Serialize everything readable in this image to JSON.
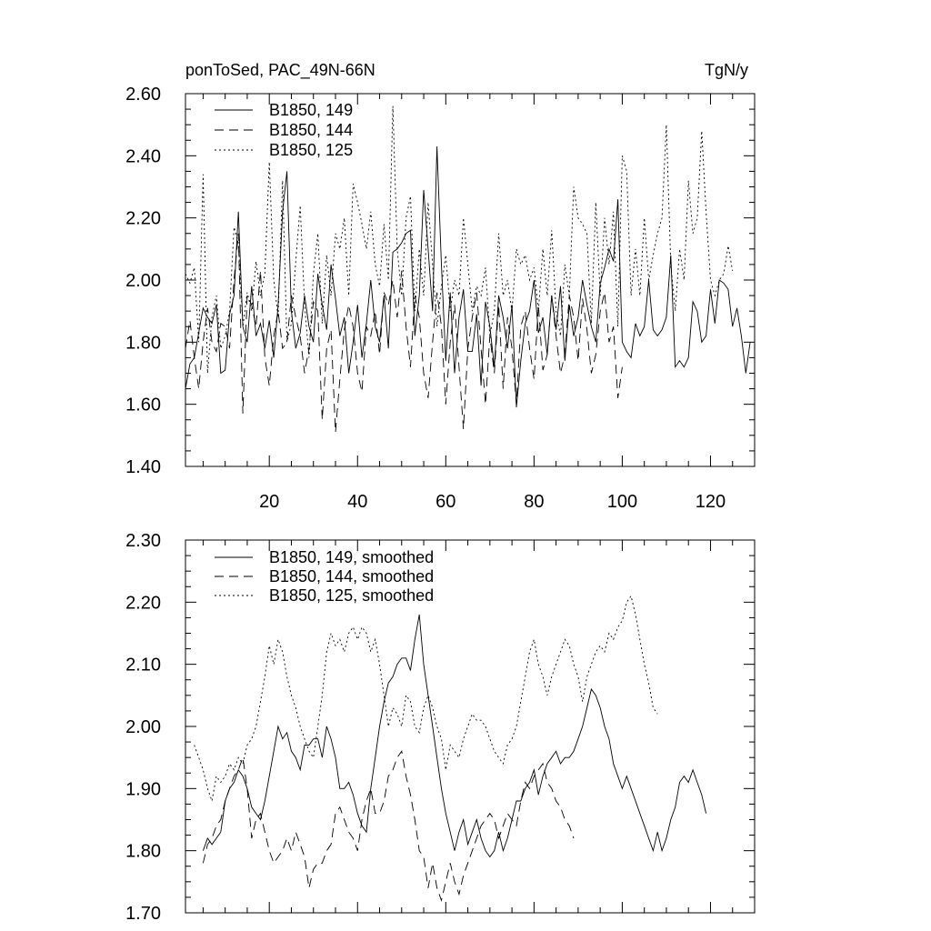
{
  "chart_data": [
    {
      "type": "line",
      "title_left": "ponToSed, PAC_49N-66N",
      "title_right": "TgN/y",
      "xlim": [
        1,
        130
      ],
      "ylim": [
        1.4,
        2.6
      ],
      "x_ticks": [
        20,
        40,
        60,
        80,
        100,
        120
      ],
      "x_tick_labels": [
        "20",
        "40",
        "60",
        "80",
        "100",
        "120"
      ],
      "y_ticks": [
        1.4,
        1.6,
        1.8,
        2.0,
        2.2,
        2.4,
        2.6
      ],
      "y_tick_labels": [
        "1.40",
        "1.60",
        "1.80",
        "2.00",
        "2.20",
        "2.40",
        "2.60"
      ],
      "legend_position": "top-left",
      "grid": false,
      "series": [
        {
          "name": "B1850, 149",
          "style": "solid",
          "x_start": 1,
          "values": [
            1.65,
            1.73,
            1.75,
            1.83,
            1.91,
            1.88,
            1.86,
            1.92,
            1.7,
            1.71,
            1.89,
            1.95,
            2.22,
            1.85,
            1.8,
            1.98,
            1.82,
            1.86,
            1.78,
            1.87,
            1.75,
            1.92,
            2.22,
            2.35,
            1.9,
            1.78,
            1.83,
            1.95,
            1.85,
            1.8,
            2.02,
            1.92,
            1.84,
            2.05,
            1.94,
            1.82,
            1.88,
            1.7,
            1.8,
            1.92,
            1.75,
            1.86,
            2.0,
            1.85,
            1.8,
            1.95,
            1.78,
            2.09,
            2.1,
            2.12,
            2.15,
            2.16,
            1.82,
            1.95,
            2.29,
            2.1,
            1.9,
            2.43,
            2.05,
            1.74,
            1.96,
            1.7,
            1.88,
            1.97,
            1.77,
            1.77,
            1.89,
            1.66,
            1.93,
            1.85,
            1.72,
            1.95,
            1.88,
            1.78,
            1.92,
            1.59,
            1.74,
            1.86,
            1.9,
            2.0,
            1.83,
            1.88,
            1.76,
            1.95,
            1.84,
            1.98,
            1.74,
            1.92,
            1.82,
            1.88,
            2.0,
            1.92,
            1.85,
            1.8,
            1.99,
            2.04,
            2.1,
            2.06,
            2.26,
            1.8,
            1.77,
            1.75,
            1.86,
            1.82,
            1.85,
            2.0,
            1.84,
            1.82,
            1.84,
            1.88,
            2.08,
            1.72,
            1.74,
            1.72,
            1.75,
            1.93,
            1.9,
            1.8,
            1.82,
            1.97,
            1.86,
            2.0,
            1.99,
            1.97,
            1.85,
            1.91,
            1.82,
            1.7,
            1.8
          ]
        },
        {
          "name": "B1850, 144",
          "style": "dashed",
          "x_start": 1,
          "values": [
            1.78,
            1.87,
            1.75,
            1.65,
            1.8,
            1.91,
            1.8,
            1.77,
            1.86,
            1.85,
            1.78,
            2.0,
            2.15,
            1.57,
            1.95,
            1.92,
            1.85,
            2.03,
            1.75,
            1.66,
            1.82,
            1.9,
            1.78,
            1.8,
            1.95,
            1.88,
            1.82,
            1.7,
            1.78,
            1.93,
            1.9,
            1.55,
            1.78,
            1.84,
            1.51,
            1.68,
            1.84,
            1.92,
            1.85,
            1.7,
            1.64,
            1.85,
            1.82,
            1.9,
            1.76,
            1.96,
            1.92,
            2.0,
            1.88,
            2.03,
            1.85,
            1.72,
            1.95,
            1.88,
            1.7,
            1.62,
            1.8,
            1.96,
            1.85,
            1.6,
            1.8,
            1.92,
            1.72,
            1.52,
            1.78,
            1.88,
            1.96,
            1.78,
            1.6,
            1.82,
            1.7,
            1.92,
            1.65,
            1.88,
            1.78,
            1.6,
            1.85,
            1.9,
            1.78,
            1.68,
            1.92,
            1.71,
            1.76,
            1.95,
            1.82,
            1.7,
            1.76,
            1.95,
            1.88,
            1.74,
            1.94,
            1.84,
            1.7,
            1.76,
            1.9,
            1.96,
            1.8,
            1.85,
            1.62,
            1.72
          ]
        },
        {
          "name": "B1850, 125",
          "style": "dotted",
          "x_start": 1,
          "values": [
            2.02,
            1.99,
            2.04,
            1.8,
            2.34,
            1.7,
            1.88,
            1.95,
            1.78,
            1.82,
            1.9,
            2.17,
            2.12,
            1.85,
            1.96,
            1.9,
            2.06,
            1.95,
            2.02,
            2.38,
            2.0,
            1.88,
            2.32,
            1.8,
            1.86,
            2.06,
            2.24,
            1.92,
            1.75,
            2.02,
            2.15,
            1.86,
            2.08,
            1.95,
            2.15,
            2.1,
            2.2,
            1.95,
            2.31,
            2.25,
            2.18,
            2.1,
            2.22,
            2.05,
            1.98,
            2.18,
            2.0,
            2.56,
            2.1,
            1.95,
            2.2,
            2.27,
            1.9,
            2.1,
            1.95,
            2.25,
            2.05,
            1.85,
            1.98,
            2.08,
            1.9,
            2.0,
            1.95,
            2.2,
            2.05,
            1.9,
            1.98,
            1.95,
            2.04,
            1.82,
            1.9,
            2.15,
            1.95,
            2.0,
            1.9,
            2.1,
            2.05,
            2.08,
            2.0,
            2.04,
            1.9,
            2.1,
            1.95,
            2.16,
            1.9,
            1.82,
            2.05,
            1.95,
            2.3,
            2.2,
            2.18,
            2.15,
            1.86,
            2.25,
            1.95,
            2.2,
            2.05,
            2.22,
            1.85,
            2.4,
            2.35,
            1.95,
            2.1,
            1.95,
            2.2,
            2.0,
            2.08,
            2.15,
            2.2,
            2.5,
            2.05,
            1.9,
            2.1,
            2.0,
            2.32,
            2.15,
            2.2,
            2.48,
            2.22,
            2.0,
            1.95,
            2.0,
            2.02,
            2.11,
            2.03
          ]
        }
      ]
    },
    {
      "type": "line",
      "xlim": [
        1,
        130
      ],
      "ylim": [
        1.7,
        2.3
      ],
      "x_ticks": [
        20,
        40,
        60,
        80,
        100,
        120
      ],
      "y_ticks": [
        1.7,
        1.8,
        1.9,
        2.0,
        2.1,
        2.2,
        2.3
      ],
      "y_tick_labels": [
        "1.70",
        "1.80",
        "1.90",
        "2.00",
        "2.10",
        "2.20",
        "2.30"
      ],
      "legend_position": "top-left",
      "grid": false,
      "series": [
        {
          "name": "B1850, 149, smoothed",
          "style": "solid",
          "x_start": 5,
          "values": [
            1.8,
            1.82,
            1.81,
            1.82,
            1.83,
            1.88,
            1.9,
            1.91,
            1.93,
            1.92,
            1.9,
            1.87,
            1.86,
            1.85,
            1.88,
            1.92,
            1.96,
            2.0,
            1.98,
            1.99,
            1.96,
            1.95,
            1.93,
            1.97,
            1.97,
            1.98,
            1.98,
            1.95,
            2.0,
            1.98,
            1.95,
            1.9,
            1.9,
            1.91,
            1.89,
            1.86,
            1.84,
            1.83,
            1.9,
            1.95,
            2.0,
            2.04,
            2.07,
            2.08,
            2.1,
            2.11,
            2.11,
            2.09,
            2.14,
            2.18,
            2.1,
            2.05,
            2.0,
            1.95,
            1.9,
            1.86,
            1.83,
            1.8,
            1.83,
            1.85,
            1.81,
            1.83,
            1.85,
            1.82,
            1.8,
            1.79,
            1.8,
            1.83,
            1.8,
            1.82,
            1.85,
            1.88,
            1.88,
            1.9,
            1.91,
            1.93,
            1.89,
            1.92,
            1.94,
            1.95,
            1.96,
            1.94,
            1.95,
            1.95,
            1.96,
            1.98,
            2.0,
            2.03,
            2.06,
            2.05,
            2.03,
            2.0,
            1.98,
            1.94,
            1.92,
            1.9,
            1.92,
            1.9,
            1.88,
            1.86,
            1.84,
            1.82,
            1.8,
            1.83,
            1.8,
            1.82,
            1.85,
            1.87,
            1.91,
            1.92,
            1.91,
            1.93,
            1.91,
            1.89,
            1.86
          ]
        },
        {
          "name": "B1850, 144, smoothed",
          "style": "dashed",
          "x_start": 5,
          "values": [
            1.78,
            1.81,
            1.82,
            1.84,
            1.85,
            1.88,
            1.9,
            1.92,
            1.93,
            1.95,
            1.9,
            1.82,
            1.85,
            1.86,
            1.83,
            1.8,
            1.78,
            1.79,
            1.8,
            1.82,
            1.8,
            1.83,
            1.81,
            1.79,
            1.74,
            1.77,
            1.78,
            1.78,
            1.8,
            1.81,
            1.86,
            1.87,
            1.85,
            1.83,
            1.82,
            1.8,
            1.85,
            1.88,
            1.9,
            1.86,
            1.86,
            1.88,
            1.92,
            1.93,
            1.95,
            1.96,
            1.92,
            1.89,
            1.85,
            1.8,
            1.79,
            1.74,
            1.78,
            1.74,
            1.72,
            1.75,
            1.78,
            1.75,
            1.73,
            1.76,
            1.78,
            1.8,
            1.82,
            1.84,
            1.85,
            1.86,
            1.85,
            1.82,
            1.84,
            1.86,
            1.85,
            1.84,
            1.88,
            1.91,
            1.9,
            1.92,
            1.93,
            1.94,
            1.91,
            1.9,
            1.88,
            1.87,
            1.85,
            1.84,
            1.82
          ]
        },
        {
          "name": "B1850, 125, smoothed",
          "style": "dotted",
          "x_start": 3,
          "values": [
            1.97,
            1.95,
            1.93,
            1.9,
            1.88,
            1.92,
            1.91,
            1.92,
            1.94,
            1.93,
            1.95,
            1.94,
            1.97,
            1.98,
            2.0,
            2.04,
            2.08,
            2.13,
            2.1,
            2.14,
            2.12,
            2.08,
            2.05,
            2.03,
            2.0,
            1.98,
            1.96,
            1.95,
            2.0,
            2.05,
            2.12,
            2.15,
            2.13,
            2.14,
            2.12,
            2.15,
            2.16,
            2.14,
            2.16,
            2.15,
            2.12,
            2.14,
            2.1,
            2.05,
            2.0,
            2.03,
            2.02,
            2.0,
            2.05,
            2.04,
            2.0,
            1.99,
            2.03,
            2.05,
            2.03,
            2.0,
            1.98,
            1.93,
            1.97,
            1.96,
            1.95,
            1.98,
            2.0,
            2.02,
            2.01,
            2.01,
            2.0,
            1.98,
            1.96,
            1.95,
            1.94,
            1.97,
            1.98,
            2.0,
            2.04,
            2.08,
            2.12,
            2.14,
            2.1,
            2.08,
            2.05,
            2.08,
            2.1,
            2.12,
            2.14,
            2.13,
            2.1,
            2.08,
            2.04,
            2.08,
            2.1,
            2.12,
            2.13,
            2.12,
            2.15,
            2.14,
            2.16,
            2.17,
            2.2,
            2.21,
            2.18,
            2.14,
            2.1,
            2.07,
            2.03,
            2.02
          ]
        }
      ]
    }
  ]
}
